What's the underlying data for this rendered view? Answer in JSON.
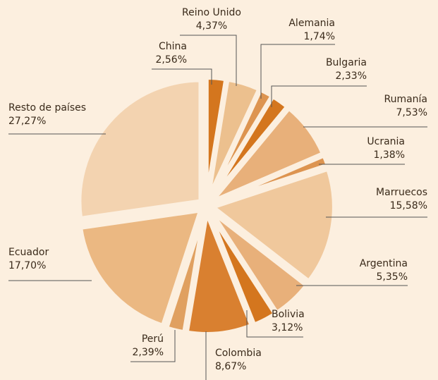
{
  "chart_data": {
    "type": "pie",
    "categories": [
      "China",
      "Reino Unido",
      "Alemania",
      "Bulgaria",
      "Rumanía",
      "Ucrania",
      "Marruecos",
      "Argentina",
      "Bolivia",
      "Colombia",
      "Perú",
      "Ecuador",
      "Resto de países"
    ],
    "values": [
      2.56,
      4.37,
      1.74,
      2.33,
      7.53,
      1.38,
      15.58,
      5.35,
      3.12,
      8.67,
      2.39,
      17.7,
      27.27
    ],
    "value_labels": [
      "2,56%",
      "4,37%",
      "1,74%",
      "2,33%",
      "7,53%",
      "1,38%",
      "15,58%",
      "5,35%",
      "3,12%",
      "8,67%",
      "2,39%",
      "17,70%",
      "27,27%"
    ],
    "colors": [
      "#d4761e",
      "#ecc08e",
      "#dd9450",
      "#d4761e",
      "#e8b07a",
      "#dd9450",
      "#f0c89c",
      "#e8b07a",
      "#d4761e",
      "#d98030",
      "#e0a060",
      "#ebb882",
      "#f3d3b0"
    ]
  }
}
